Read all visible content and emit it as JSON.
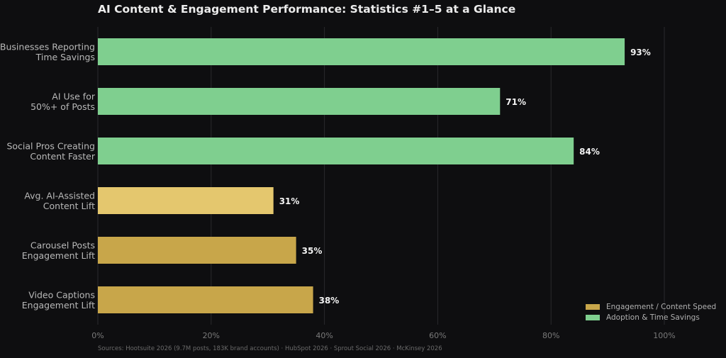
{
  "chart_data": {
    "type": "bar",
    "orientation": "horizontal",
    "title": "AI Content & Engagement Performance: Statistics #1–5 at a Glance",
    "categories": [
      [
        "Businesses Reporting",
        "Time Savings"
      ],
      [
        "AI Use for",
        "50%+ of Posts"
      ],
      [
        "Social Pros Creating",
        "Content Faster"
      ],
      [
        "Avg. AI-Assisted",
        "Content Lift"
      ],
      [
        "Carousel Posts",
        "Engagement Lift"
      ],
      [
        "Video Captions",
        "Engagement Lift"
      ]
    ],
    "values": [
      93,
      71,
      84,
      31,
      35,
      38
    ],
    "value_labels": [
      "93%",
      "71%",
      "84%",
      "31%",
      "35%",
      "38%"
    ],
    "bar_groups": [
      "Adoption & Time Savings",
      "Adoption & Time Savings",
      "Adoption & Time Savings",
      "Engagement / Content Speed",
      "Engagement / Content Speed",
      "Engagement / Content Speed"
    ],
    "bar_colors": [
      "#7fcf8f",
      "#7fcf8f",
      "#7fcf8f",
      "#e4c76e",
      "#c8a64a",
      "#c8a64a"
    ],
    "xlim": [
      0,
      100
    ],
    "xticks": [
      0,
      20,
      40,
      60,
      80,
      100
    ],
    "xtick_labels": [
      "0%",
      "20%",
      "40%",
      "60%",
      "80%",
      "100%"
    ],
    "xlabel": "",
    "ylabel": "",
    "grid": "vertical",
    "legend": {
      "placement": "bottom-right",
      "entries": [
        {
          "name": "Engagement / Content Speed",
          "color": "#c8a64a"
        },
        {
          "name": "Adoption & Time Savings",
          "color": "#7fcf8f"
        }
      ]
    }
  },
  "sources": "Sources: Hootsuite 2026 (9.7M posts, 183K brand accounts) · HubSpot 2026 · Sprout Social 2026 · McKinsey 2026",
  "colors": {
    "background": "#0e0e10",
    "grid": "#2a2a2e",
    "text": "#b8b8b8"
  }
}
